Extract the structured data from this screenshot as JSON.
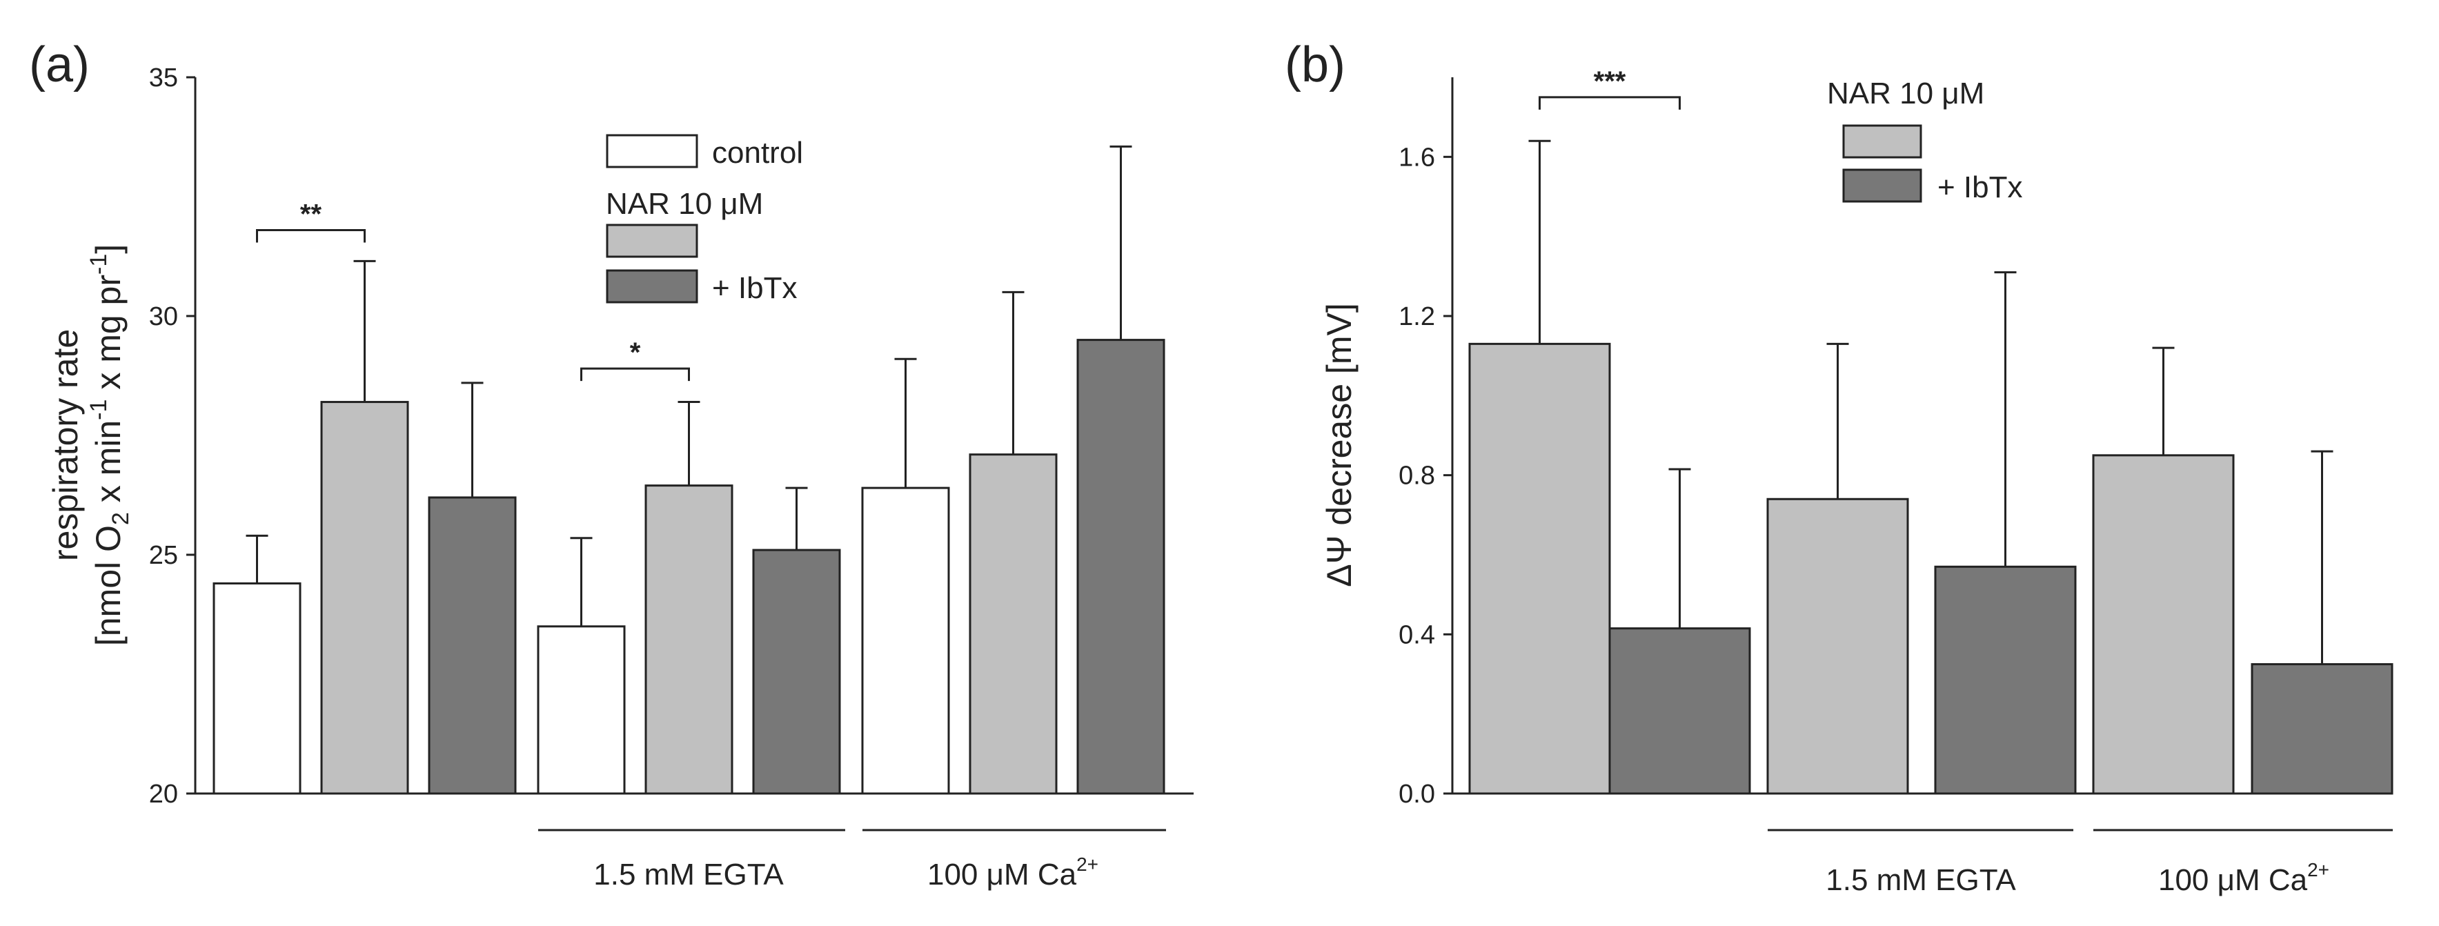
{
  "colors": {
    "control": "#ffffff",
    "nar": "#c0c0c0",
    "ibtx": "#787878",
    "stroke": "#222222"
  },
  "chart_data": [
    {
      "type": "bar",
      "panel_label": "(a)",
      "ylabel_line1": "respiratory rate",
      "ylabel_line2_pre": "[nmol O",
      "ylabel_line2_sub": "2",
      "ylabel_line2_mid1": " x min",
      "ylabel_line2_sup1": "-1",
      "ylabel_line2_mid2": " x mg pr",
      "ylabel_line2_sup2": "-1",
      "ylabel_line2_post": "]",
      "ylim": [
        20,
        35
      ],
      "yticks": [
        "20",
        "25",
        "30",
        "35"
      ],
      "legend": {
        "control_label": "control",
        "group_label": "NAR 10 μM",
        "ibtx_label": "+ IbTx"
      },
      "series": [
        {
          "name": "control",
          "values": [
            24.4,
            23.5,
            26.4
          ],
          "errors": [
            1.0,
            1.85,
            2.7
          ]
        },
        {
          "name": "NAR 10 μM",
          "values": [
            28.2,
            26.45,
            27.1
          ],
          "errors": [
            2.95,
            1.75,
            3.4
          ]
        },
        {
          "name": "+ IbTx",
          "values": [
            26.2,
            25.1,
            29.5
          ],
          "errors": [
            2.4,
            1.3,
            4.05
          ]
        }
      ],
      "groups": [
        {
          "label": ""
        },
        {
          "label": "1.5 mM EGTA"
        },
        {
          "label_pre": "100 μM Ca",
          "label_sup": "2+"
        }
      ],
      "significance": [
        {
          "group": 0,
          "from": 0,
          "to": 1,
          "text": "**",
          "y": 31.8
        },
        {
          "group": 1,
          "from": 0,
          "to": 1,
          "text": "*",
          "y": 28.9
        }
      ]
    },
    {
      "type": "bar",
      "panel_label": "(b)",
      "ylabel": "ΔΨ decrease [mV]",
      "ylim": [
        0.0,
        1.8
      ],
      "yticks": [
        "0.0",
        "0.4",
        "0.8",
        "1.2",
        "1.6"
      ],
      "legend": {
        "group_label": "NAR 10 μM",
        "ibtx_label": "+ IbTx"
      },
      "series": [
        {
          "name": "NAR 10 μM",
          "values": [
            1.13,
            0.74,
            0.85
          ],
          "errors": [
            0.51,
            0.39,
            0.27
          ]
        },
        {
          "name": "+ IbTx",
          "values": [
            0.415,
            0.57,
            0.325
          ],
          "errors": [
            0.4,
            0.74,
            0.535
          ]
        }
      ],
      "groups": [
        {
          "label": ""
        },
        {
          "label": "1.5 mM EGTA"
        },
        {
          "label_pre": "100 μM Ca",
          "label_sup": "2+"
        }
      ],
      "significance": [
        {
          "group": 0,
          "from": 0,
          "to": 1,
          "text": "***",
          "y": 1.75
        }
      ]
    }
  ]
}
